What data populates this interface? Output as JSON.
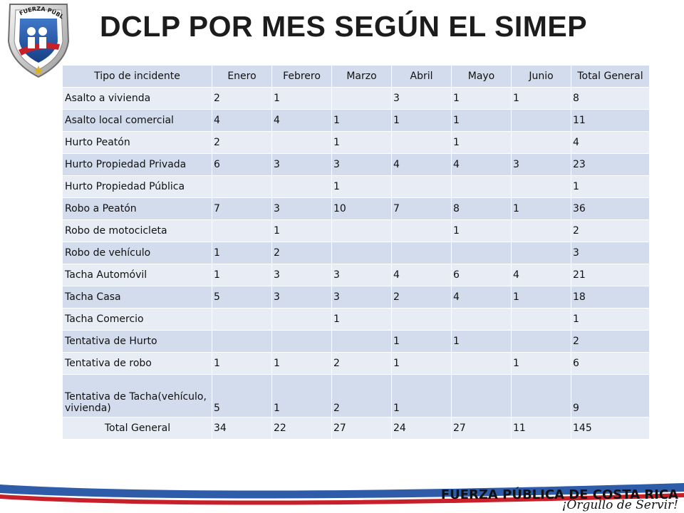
{
  "logo": {
    "arc_text": "FUERZA PÚBLICA"
  },
  "title": "DCLP POR MES SEGÚN EL SIMEP",
  "chart_data": {
    "type": "table",
    "columns": [
      "Tipo de incidente",
      "Enero",
      "Febrero",
      "Marzo",
      "Abril",
      "Mayo",
      "Junio",
      "Total General"
    ],
    "rows": [
      [
        "Asalto a vivienda",
        "2",
        "1",
        "",
        "3",
        "1",
        "1",
        "8"
      ],
      [
        "Asalto local comercial",
        "4",
        "4",
        "1",
        "1",
        "1",
        "",
        "11"
      ],
      [
        "Hurto  Peatón",
        "2",
        "",
        "1",
        "",
        "1",
        "",
        "4"
      ],
      [
        "Hurto Propiedad Privada",
        "6",
        "3",
        "3",
        "4",
        "4",
        "3",
        "23"
      ],
      [
        "Hurto Propiedad Pública",
        "",
        "",
        "1",
        "",
        "",
        "",
        "1"
      ],
      [
        "Robo a Peatón",
        "7",
        "3",
        "10",
        "7",
        "8",
        "1",
        "36"
      ],
      [
        "Robo de motocicleta",
        "",
        "1",
        "",
        "",
        "1",
        "",
        "2"
      ],
      [
        "Robo de vehículo",
        "1",
        "2",
        "",
        "",
        "",
        "",
        "3"
      ],
      [
        "Tacha  Automóvil",
        "1",
        "3",
        "3",
        "4",
        "6",
        "4",
        "21"
      ],
      [
        "Tacha Casa",
        "5",
        "3",
        "3",
        "2",
        "4",
        "1",
        "18"
      ],
      [
        "Tacha Comercio",
        "",
        "",
        "1",
        "",
        "",
        "",
        "1"
      ],
      [
        "Tentativa de Hurto",
        "",
        "",
        "",
        "1",
        "1",
        "",
        "2"
      ],
      [
        "Tentativa de robo",
        "1",
        "1",
        "2",
        "1",
        "",
        "1",
        "6"
      ],
      [
        "Tentativa de Tacha(vehículo, vivienda)",
        "5",
        "1",
        "2",
        "1",
        "",
        "",
        "9"
      ]
    ],
    "total_row": [
      "Total General",
      "34",
      "22",
      "27",
      "24",
      "27",
      "11",
      "145"
    ]
  },
  "footer": {
    "brand": "FUERZA PÚBLICA DE COSTA RICA",
    "motto": "¡Orgullo de Servir!"
  },
  "colors": {
    "row_dark": "#d3dcec",
    "row_light": "#e8ecf5",
    "title": "#1c1c1c",
    "footer_blue": "#2e5ca8"
  }
}
